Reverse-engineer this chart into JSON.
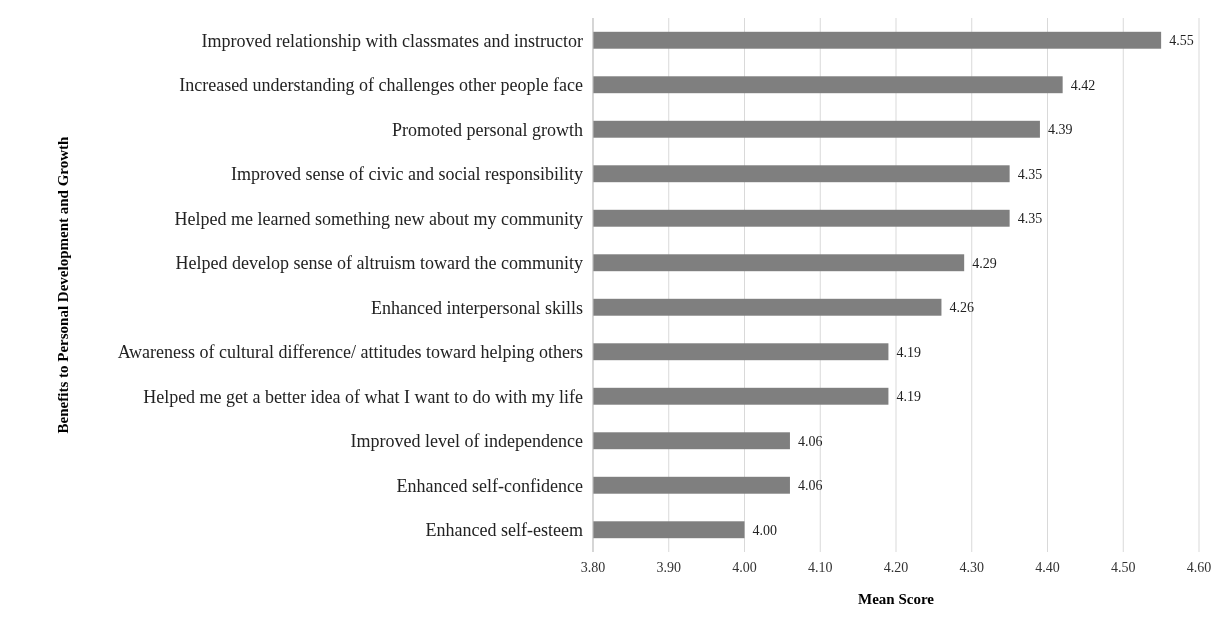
{
  "chart_data": {
    "type": "bar",
    "orientation": "horizontal",
    "xlabel": "Mean Score",
    "ylabel": "Benefits to Personal Development and Growth",
    "categories": [
      "Improved relationship with classmates and instructor",
      "Increased understanding of challenges other people face",
      "Promoted personal growth",
      "Improved sense of civic and social responsibility",
      "Helped me learned something new about my community",
      "Helped develop sense of altruism toward the community",
      "Enhanced  interpersonal skills",
      "Awareness of cultural difference/ attitudes toward helping others",
      "Helped me get a better idea of what I want to do with my life",
      "Improved level of independence",
      "Enhanced self-confidence",
      "Enhanced self-esteem"
    ],
    "values": [
      4.55,
      4.42,
      4.39,
      4.35,
      4.35,
      4.29,
      4.26,
      4.19,
      4.19,
      4.06,
      4.06,
      4.0
    ],
    "value_labels": [
      "4.55",
      "4.42",
      "4.39",
      "4.35",
      "4.35",
      "4.29",
      "4.26",
      "4.19",
      "4.19",
      "4.06",
      "4.06",
      "4.00"
    ],
    "color": "#7f7f7f",
    "xlim": [
      3.8,
      4.6
    ],
    "xticks": [
      {
        "value": 3.8,
        "label": "3.80"
      },
      {
        "value": 3.9,
        "label": "3.90"
      },
      {
        "value": 4.0,
        "label": "4.00"
      },
      {
        "value": 4.1,
        "label": "4.10"
      },
      {
        "value": 4.2,
        "label": "4.20"
      },
      {
        "value": 4.3,
        "label": "4.30"
      },
      {
        "value": 4.4,
        "label": "4.40"
      },
      {
        "value": 4.5,
        "label": "4.50"
      },
      {
        "value": 4.6,
        "label": "4.60"
      }
    ],
    "grid": "x"
  }
}
